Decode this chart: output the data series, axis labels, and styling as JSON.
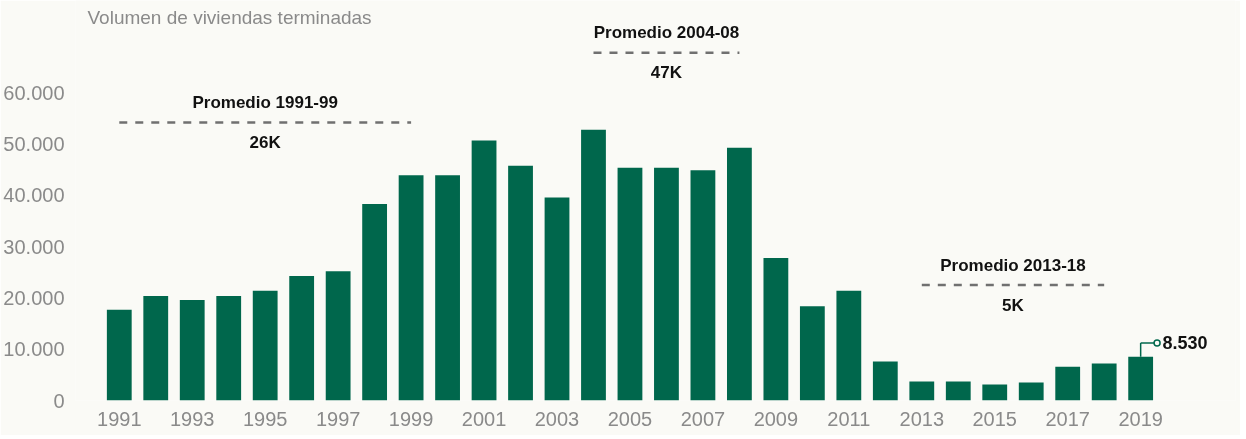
{
  "chart_data": {
    "type": "bar",
    "ylabel": "Volumen de viviendas terminadas",
    "x": [
      1991,
      1992,
      1993,
      1994,
      1995,
      1996,
      1997,
      1998,
      1999,
      2000,
      2001,
      2002,
      2003,
      2004,
      2005,
      2006,
      2007,
      2008,
      2009,
      2010,
      2011,
      2012,
      2013,
      2014,
      2015,
      2016,
      2017,
      2018,
      2019
    ],
    "xlim": [
      1989.8,
      2021.6
    ],
    "xticks": [
      1991,
      1993,
      1995,
      1997,
      1999,
      2001,
      2003,
      2005,
      2007,
      2009,
      2011,
      2013,
      2015,
      2017,
      2019
    ],
    "series": [
      {
        "color": "#00674c",
        "values": [
          17700,
          20400,
          19600,
          20400,
          21400,
          24300,
          25200,
          38300,
          43900,
          43900,
          50700,
          45800,
          39600,
          52800,
          45400,
          45400,
          44900,
          49300,
          27800,
          18400,
          21400,
          7600,
          3700,
          3700,
          3100,
          3500,
          6600,
          7200,
          8530
        ],
        "value_labels": [
          null,
          null,
          null,
          null,
          null,
          null,
          null,
          null,
          null,
          null,
          null,
          null,
          null,
          null,
          null,
          null,
          null,
          null,
          null,
          null,
          null,
          null,
          null,
          null,
          null,
          null,
          null,
          null,
          "8.530"
        ]
      },
      {
        "type": "line",
        "color": "#707070",
        "line_style": "dashed",
        "x": [
          1991,
          1999
        ],
        "values": [
          54200,
          54200
        ]
      },
      {
        "type": "line",
        "color": "#707070",
        "line_style": "dashed",
        "x": [
          2004,
          2008
        ],
        "values": [
          67800,
          67800
        ]
      },
      {
        "type": "line",
        "color": "#707070",
        "line_style": "dashed",
        "x": [
          2013,
          2018
        ],
        "values": [
          22500,
          22500
        ]
      }
    ],
    "ylim": [
      0,
      78000
    ],
    "yticks": [
      {
        "value": 0,
        "label": "0"
      },
      {
        "value": 10000,
        "label": "10.000"
      },
      {
        "value": 20000,
        "label": "20.000"
      },
      {
        "value": 30000,
        "label": "30.000"
      },
      {
        "value": 40000,
        "label": "40.000"
      },
      {
        "value": 50000,
        "label": "50.000"
      },
      {
        "value": 60000,
        "label": "60.000"
      }
    ],
    "annotations": [
      "Promedio 1991-99",
      "26K",
      "Promedio 2004-08",
      "47K",
      "Promedio 2013-18",
      "5K"
    ],
    "grid": false
  }
}
